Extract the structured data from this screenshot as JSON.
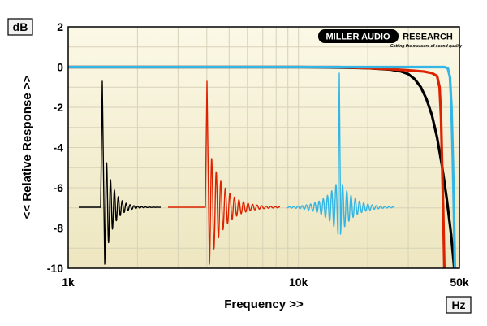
{
  "chart_data": {
    "type": "line",
    "title": "",
    "xlabel": "Frequency >>",
    "ylabel": "<< Relative Response >>",
    "x_unit": "Hz",
    "y_unit": "dB",
    "xscale": "log",
    "xlim": [
      1000,
      50000
    ],
    "ylim": [
      -10,
      2
    ],
    "x_ticks": [
      {
        "value": 1000,
        "label": "1k"
      },
      {
        "value": 10000,
        "label": "10k"
      },
      {
        "value": 50000,
        "label": "50k"
      }
    ],
    "y_ticks": [
      {
        "value": 2,
        "label": "2"
      },
      {
        "value": 0,
        "label": "0"
      },
      {
        "value": -2,
        "label": "-2"
      },
      {
        "value": -4,
        "label": "-4"
      },
      {
        "value": -6,
        "label": "-6"
      },
      {
        "value": -8,
        "label": "-8"
      },
      {
        "value": -10,
        "label": "-10"
      }
    ],
    "grid": true,
    "series": [
      {
        "color": "#000000",
        "points": [
          [
            1000,
            0
          ],
          [
            10000,
            0
          ],
          [
            15000,
            -0.02
          ],
          [
            20000,
            -0.05
          ],
          [
            25000,
            -0.12
          ],
          [
            28000,
            -0.22
          ],
          [
            30000,
            -0.35
          ],
          [
            32000,
            -0.6
          ],
          [
            34000,
            -1.0
          ],
          [
            36000,
            -1.6
          ],
          [
            38000,
            -2.4
          ],
          [
            40000,
            -3.5
          ],
          [
            42000,
            -4.9
          ],
          [
            44000,
            -6.5
          ],
          [
            46000,
            -8.3
          ],
          [
            47500,
            -10
          ]
        ]
      },
      {
        "color": "#dd2200",
        "points": [
          [
            1000,
            0
          ],
          [
            15000,
            0
          ],
          [
            20000,
            -0.05
          ],
          [
            25000,
            -0.1
          ],
          [
            30000,
            -0.16
          ],
          [
            35000,
            -0.22
          ],
          [
            38000,
            -0.3
          ],
          [
            40000,
            -0.45
          ],
          [
            41000,
            -1.0
          ],
          [
            41600,
            -2.5
          ],
          [
            42000,
            -4.5
          ],
          [
            42500,
            -7.0
          ],
          [
            43000,
            -10
          ]
        ]
      },
      {
        "color": "#33b5e5",
        "points": [
          [
            1000,
            0
          ],
          [
            40000,
            0
          ],
          [
            43000,
            0
          ],
          [
            44500,
            -0.05
          ],
          [
            45500,
            -0.5
          ],
          [
            46200,
            -2.0
          ],
          [
            46800,
            -4.5
          ],
          [
            47300,
            -7.0
          ],
          [
            47800,
            -10
          ]
        ]
      }
    ],
    "impulse_insets": [
      {
        "color": "#000000",
        "shape": "minimum-phase"
      },
      {
        "color": "#dd2200",
        "shape": "minimum-phase"
      },
      {
        "color": "#33b5e5",
        "shape": "linear-phase"
      }
    ]
  },
  "logo": {
    "text_left": "MILLER AUDIO",
    "text_right": "RESEARCH",
    "tagline": "Getting the measure of sound quality"
  },
  "colors": {
    "plot_background_top": "#fbf8e6",
    "plot_background_bottom": "#ede6c0",
    "grid": "#d7d2b8"
  }
}
